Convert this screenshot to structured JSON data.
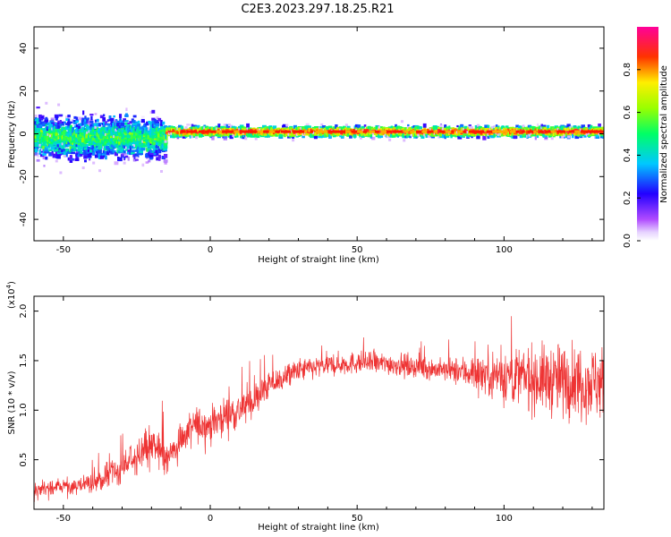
{
  "figure": {
    "title": "C2E3.2023.297.18.25.R21"
  },
  "chart_data": [
    {
      "type": "heatmap",
      "xlabel": "Height of straight line (km)",
      "ylabel": "Frequency (Hz)",
      "xlim": [
        -60,
        134
      ],
      "ylim": [
        -50,
        50
      ],
      "x_ticks": [
        -50,
        0,
        50,
        100
      ],
      "y_ticks": [
        -40,
        -20,
        0,
        20,
        40
      ],
      "grid": false,
      "colorbar": {
        "label": "Normalized spectral amplitude",
        "range": [
          0,
          1
        ],
        "ticks": [
          0.0,
          0.2,
          0.4,
          0.6,
          0.8
        ],
        "colormap": "rainbow",
        "stops": [
          "#ffffff",
          "#e0ccff",
          "#a020ff",
          "#2000ff",
          "#00c8ff",
          "#00ff80",
          "#a0ff00",
          "#ffe000",
          "#ff0000",
          "#ff00a0"
        ]
      },
      "description_values": {
        "band_center_left_hz": -2,
        "band_center_right_hz": 1,
        "band_halfwidth_left_hz": 12,
        "band_halfwidth_right_hz": 3,
        "transition_km": -15
      }
    },
    {
      "type": "line",
      "xlabel": "Height of straight line (km)",
      "ylabel": "SNR (10 * v/v)",
      "y_multiplier": "(x10^4)",
      "y_multiplier_base": "(x10",
      "y_multiplier_exp": "4",
      "y_multiplier_close": ")",
      "xlim": [
        -60,
        134
      ],
      "ylim": [
        0,
        21500
      ],
      "x_ticks": [
        -50,
        0,
        50,
        100
      ],
      "y_ticks": [
        5000,
        10000,
        15000,
        20000
      ],
      "y_tick_labels": [
        "0.5",
        "1.0",
        "1.5",
        "2.0"
      ],
      "series": [
        {
          "color": "#ee3333",
          "envelope": {
            "x": [
              -60,
              -50,
              -40,
              -30,
              -25,
              -20,
              -15,
              -10,
              -5,
              0,
              5,
              10,
              15,
              20,
              30,
              40,
              50,
              60,
              70,
              80,
              90,
              100,
              110,
              120,
              134
            ],
            "y": [
              1900,
              2200,
              2600,
              4000,
              5500,
              6500,
              5000,
              7000,
              8500,
              8500,
              9500,
              10000,
              11000,
              12500,
              14000,
              14500,
              14800,
              14700,
              14400,
              14000,
              13800,
              13500,
              13200,
              13000,
              12800
            ],
            "spread": [
              900,
              1000,
              1100,
              1500,
              2000,
              2500,
              2200,
              2200,
              2000,
              2000,
              2000,
              2000,
              1800,
              1500,
              1300,
              1200,
              1200,
              1200,
              1200,
              1200,
              2000,
              3000,
              3500,
              4000,
              4000
            ]
          }
        }
      ]
    }
  ]
}
